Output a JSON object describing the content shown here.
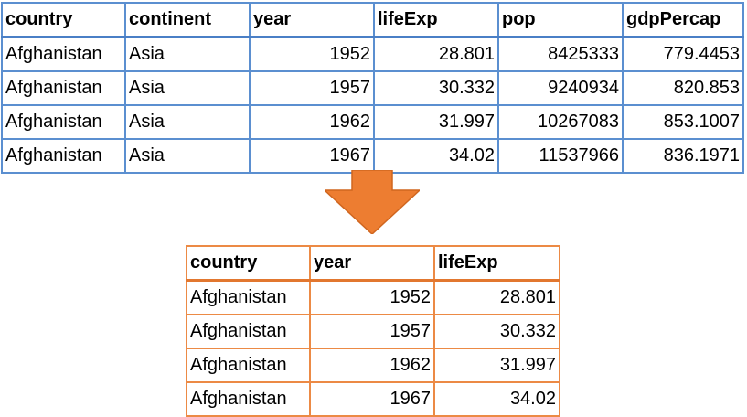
{
  "source_table": {
    "columns": [
      "country",
      "continent",
      "year",
      "lifeExp",
      "pop",
      "gdpPercap"
    ],
    "rows": [
      [
        "Afghanistan",
        "Asia",
        "1952",
        "28.801",
        "8425333",
        "779.4453"
      ],
      [
        "Afghanistan",
        "Asia",
        "1957",
        "30.332",
        "9240934",
        "820.853"
      ],
      [
        "Afghanistan",
        "Asia",
        "1962",
        "31.997",
        "10267083",
        "853.1007"
      ],
      [
        "Afghanistan",
        "Asia",
        "1967",
        "34.02",
        "11537966",
        "836.1971"
      ]
    ]
  },
  "result_table": {
    "columns": [
      "country",
      "year",
      "lifeExp"
    ],
    "rows": [
      [
        "Afghanistan",
        "1952",
        "28.801"
      ],
      [
        "Afghanistan",
        "1957",
        "30.332"
      ],
      [
        "Afghanistan",
        "1962",
        "31.997"
      ],
      [
        "Afghanistan",
        "1967",
        "34.02"
      ]
    ]
  },
  "colors": {
    "source_border": "#5b8fd0",
    "result_border": "#ec8a45",
    "arrow_fill": "#ed7d31"
  },
  "icons": {
    "arrow": "arrow-down-icon"
  }
}
